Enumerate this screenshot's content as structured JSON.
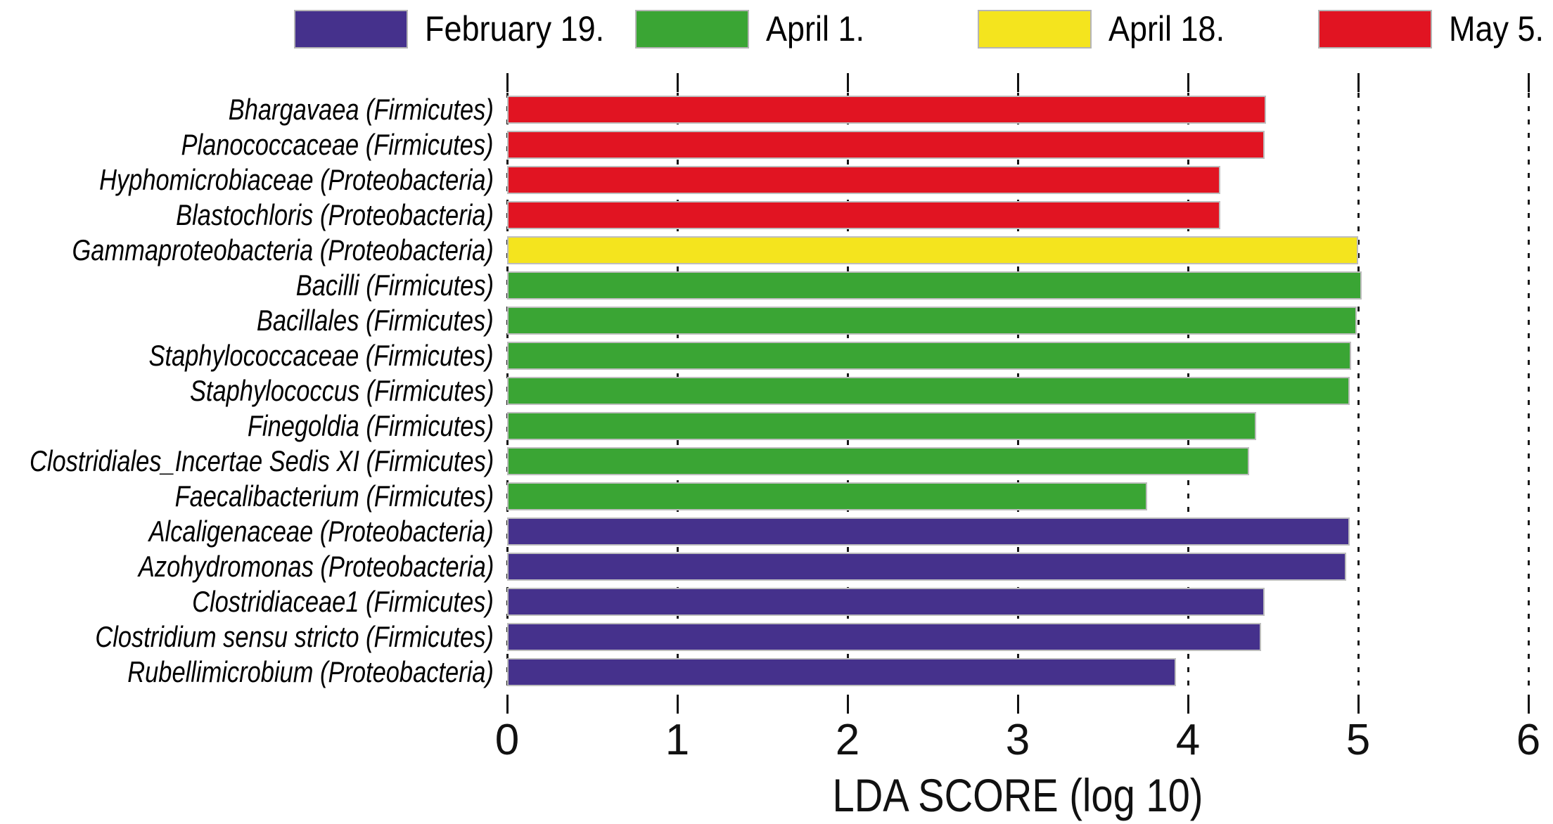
{
  "legend": {
    "items": [
      {
        "label": "February 19.",
        "color": "#45318c"
      },
      {
        "label": "April 1.",
        "color": "#3aa534"
      },
      {
        "label": "April 18.",
        "color": "#f4e41e"
      },
      {
        "label": "May 5.",
        "color": "#e11422"
      }
    ]
  },
  "axis": {
    "title": "LDA SCORE (log 10)",
    "min": 0,
    "max": 6,
    "ticks": [
      "0",
      "1",
      "2",
      "3",
      "4",
      "5",
      "6"
    ]
  },
  "chart_data": {
    "type": "bar",
    "orientation": "horizontal",
    "xlabel": "LDA SCORE (log 10)",
    "xlim": [
      0,
      6
    ],
    "grid": "dotted-vertical-at-integers",
    "legend_position": "top",
    "group_colors": {
      "February 19.": "#45318c",
      "April 1.": "#3aa534",
      "April 18.": "#f4e41e",
      "May 5.": "#e11422"
    },
    "rows": [
      {
        "label": "Bhargavaea (Firmicutes)",
        "group": "May 5.",
        "value": 4.46
      },
      {
        "label": "Planococcaceae (Firmicutes)",
        "group": "May 5.",
        "value": 4.45
      },
      {
        "label": "Hyphomicrobiaceae (Proteobacteria)",
        "group": "May 5.",
        "value": 4.19
      },
      {
        "label": "Blastochloris (Proteobacteria)",
        "group": "May 5.",
        "value": 4.19
      },
      {
        "label": "Gammaproteobacteria (Proteobacteria)",
        "group": "April 18.",
        "value": 5.0
      },
      {
        "label": "Bacilli (Firmicutes)",
        "group": "April 1.",
        "value": 5.02
      },
      {
        "label": "Bacillales (Firmicutes)",
        "group": "April 1.",
        "value": 4.99
      },
      {
        "label": "Staphylococcaceae (Firmicutes)",
        "group": "April 1.",
        "value": 4.96
      },
      {
        "label": "Staphylococcus (Firmicutes)",
        "group": "April 1.",
        "value": 4.95
      },
      {
        "label": "Finegoldia (Firmicutes)",
        "group": "April 1.",
        "value": 4.4
      },
      {
        "label": "Clostridiales_Incertae Sedis XI (Firmicutes)",
        "group": "April 1.",
        "value": 4.36
      },
      {
        "label": "Faecalibacterium (Firmicutes)",
        "group": "April 1.",
        "value": 3.76
      },
      {
        "label": "Alcaligenaceae (Proteobacteria)",
        "group": "February 19.",
        "value": 4.95
      },
      {
        "label": "Azohydromonas (Proteobacteria)",
        "group": "February 19.",
        "value": 4.93
      },
      {
        "label": "Clostridiaceae1 (Firmicutes)",
        "group": "February 19.",
        "value": 4.45
      },
      {
        "label": "Clostridium sensu stricto (Firmicutes)",
        "group": "February 19.",
        "value": 4.43
      },
      {
        "label": "Rubellimicrobium (Proteobacteria)",
        "group": "February 19.",
        "value": 3.93
      }
    ]
  }
}
